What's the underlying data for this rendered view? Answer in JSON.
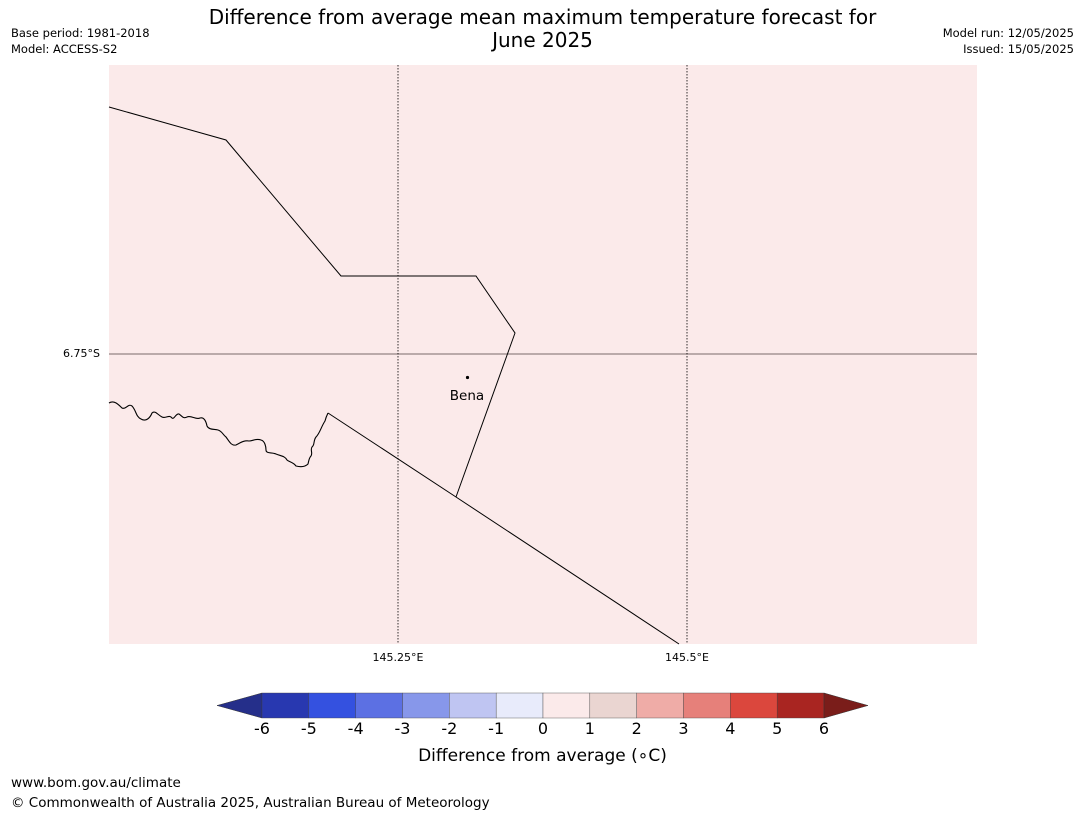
{
  "title": {
    "line1": "Difference from average mean maximum temperature forecast for",
    "line2": "June 2025"
  },
  "meta": {
    "base_period": "Base period: 1981-2018",
    "model": "Model: ACCESS-S2",
    "model_run": "Model run: 12/05/2025",
    "issued": "Issued: 15/05/2025"
  },
  "map": {
    "background_color": "#fbeaea",
    "grid": {
      "latitude_label": "6.75°S",
      "longitude_labels": [
        "145.25°E",
        "145.5°E"
      ]
    },
    "place": {
      "name": "Bena"
    }
  },
  "colorbar": {
    "title": "Difference from average (∘C)",
    "tick_labels": [
      "-6",
      "-5",
      "-4",
      "-3",
      "-2",
      "-1",
      "0",
      "1",
      "2",
      "3",
      "4",
      "5",
      "6"
    ],
    "colors": [
      "#252f8a",
      "#2838b0",
      "#3451e0",
      "#5c70e3",
      "#8797ea",
      "#bfc5f2",
      "#e8ebfb",
      "#fbeaea",
      "#ead5d1",
      "#efaca7",
      "#e6807a",
      "#db473d",
      "#a92521",
      "#7a1d1a"
    ]
  },
  "footer": {
    "url": "www.bom.gov.au/climate",
    "copyright": "© Commonwealth of Australia 2025, Australian Bureau of Meteorology"
  }
}
